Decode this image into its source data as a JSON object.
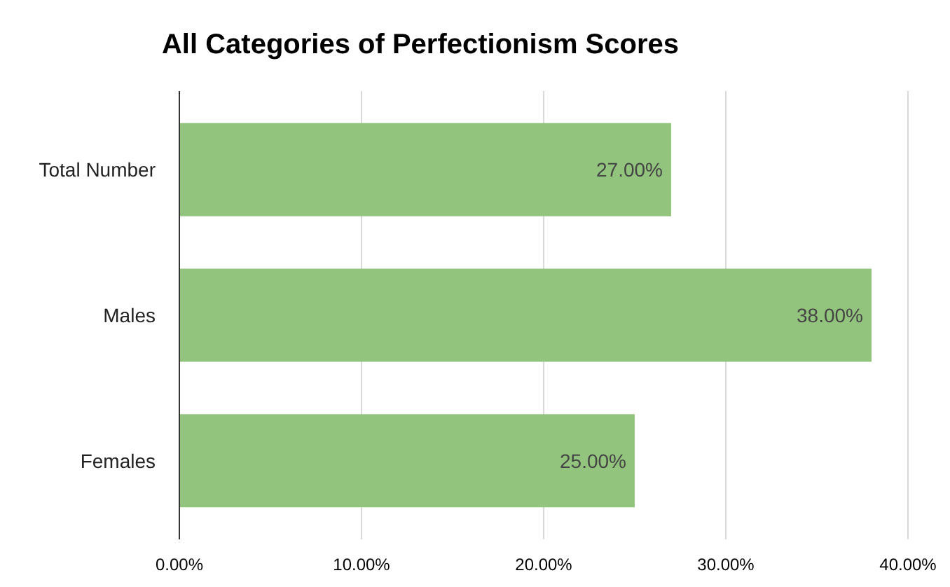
{
  "chart_data": {
    "type": "bar",
    "title": "All Categories of Perfectionism Scores",
    "orientation": "horizontal",
    "categories": [
      "Total Number",
      "Males",
      "Females"
    ],
    "values": [
      27,
      38,
      25
    ],
    "value_labels": [
      "27.00%",
      "38.00%",
      "25.00%"
    ],
    "color": "#93c47d",
    "xlim": [
      0,
      40
    ],
    "xticks": [
      {
        "value": 0,
        "label": "0.00%"
      },
      {
        "value": 10,
        "label": "10.00%"
      },
      {
        "value": 20,
        "label": "20.00%"
      },
      {
        "value": 30,
        "label": "30.00%"
      },
      {
        "value": 40,
        "label": "40.00%"
      }
    ],
    "grid": "x"
  }
}
